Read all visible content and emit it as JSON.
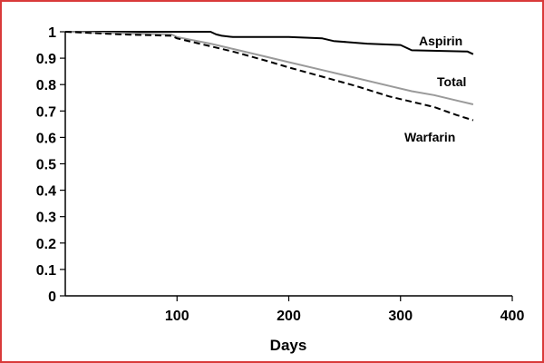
{
  "chart_data": {
    "type": "line",
    "title": "",
    "xlabel": "Days",
    "ylabel": "",
    "xlim": [
      0,
      400
    ],
    "ylim": [
      0,
      1
    ],
    "x_ticks": [
      "100",
      "200",
      "300",
      "400"
    ],
    "y_ticks": [
      "0",
      "0.1",
      "0.2",
      "0.3",
      "0.4",
      "0.5",
      "0.6",
      "0.7",
      "0.8",
      "0.9",
      "1"
    ],
    "grid": false,
    "legend": "inline labels at line ends",
    "series": [
      {
        "name": "Aspirin",
        "color": "#000000",
        "dash": "solid",
        "x": [
          0,
          130,
          135,
          140,
          150,
          200,
          230,
          240,
          270,
          300,
          310,
          360,
          365
        ],
        "y": [
          1.0,
          1.0,
          0.99,
          0.985,
          0.98,
          0.98,
          0.975,
          0.965,
          0.955,
          0.95,
          0.93,
          0.925,
          0.915
        ]
      },
      {
        "name": "Total",
        "color": "#9a9a9a",
        "dash": "solid",
        "x": [
          0,
          50,
          95,
          100,
          130,
          150,
          180,
          200,
          230,
          260,
          290,
          310,
          330,
          350,
          365
        ],
        "y": [
          1.0,
          0.995,
          0.99,
          0.98,
          0.955,
          0.935,
          0.905,
          0.885,
          0.855,
          0.825,
          0.795,
          0.775,
          0.76,
          0.74,
          0.725
        ]
      },
      {
        "name": "Warfarin",
        "color": "#000000",
        "dash": "dashed",
        "x": [
          0,
          50,
          95,
          100,
          130,
          150,
          180,
          200,
          230,
          260,
          290,
          310,
          330,
          350,
          365
        ],
        "y": [
          1.0,
          0.99,
          0.985,
          0.975,
          0.945,
          0.925,
          0.89,
          0.865,
          0.83,
          0.795,
          0.755,
          0.735,
          0.715,
          0.685,
          0.665
        ]
      }
    ]
  }
}
